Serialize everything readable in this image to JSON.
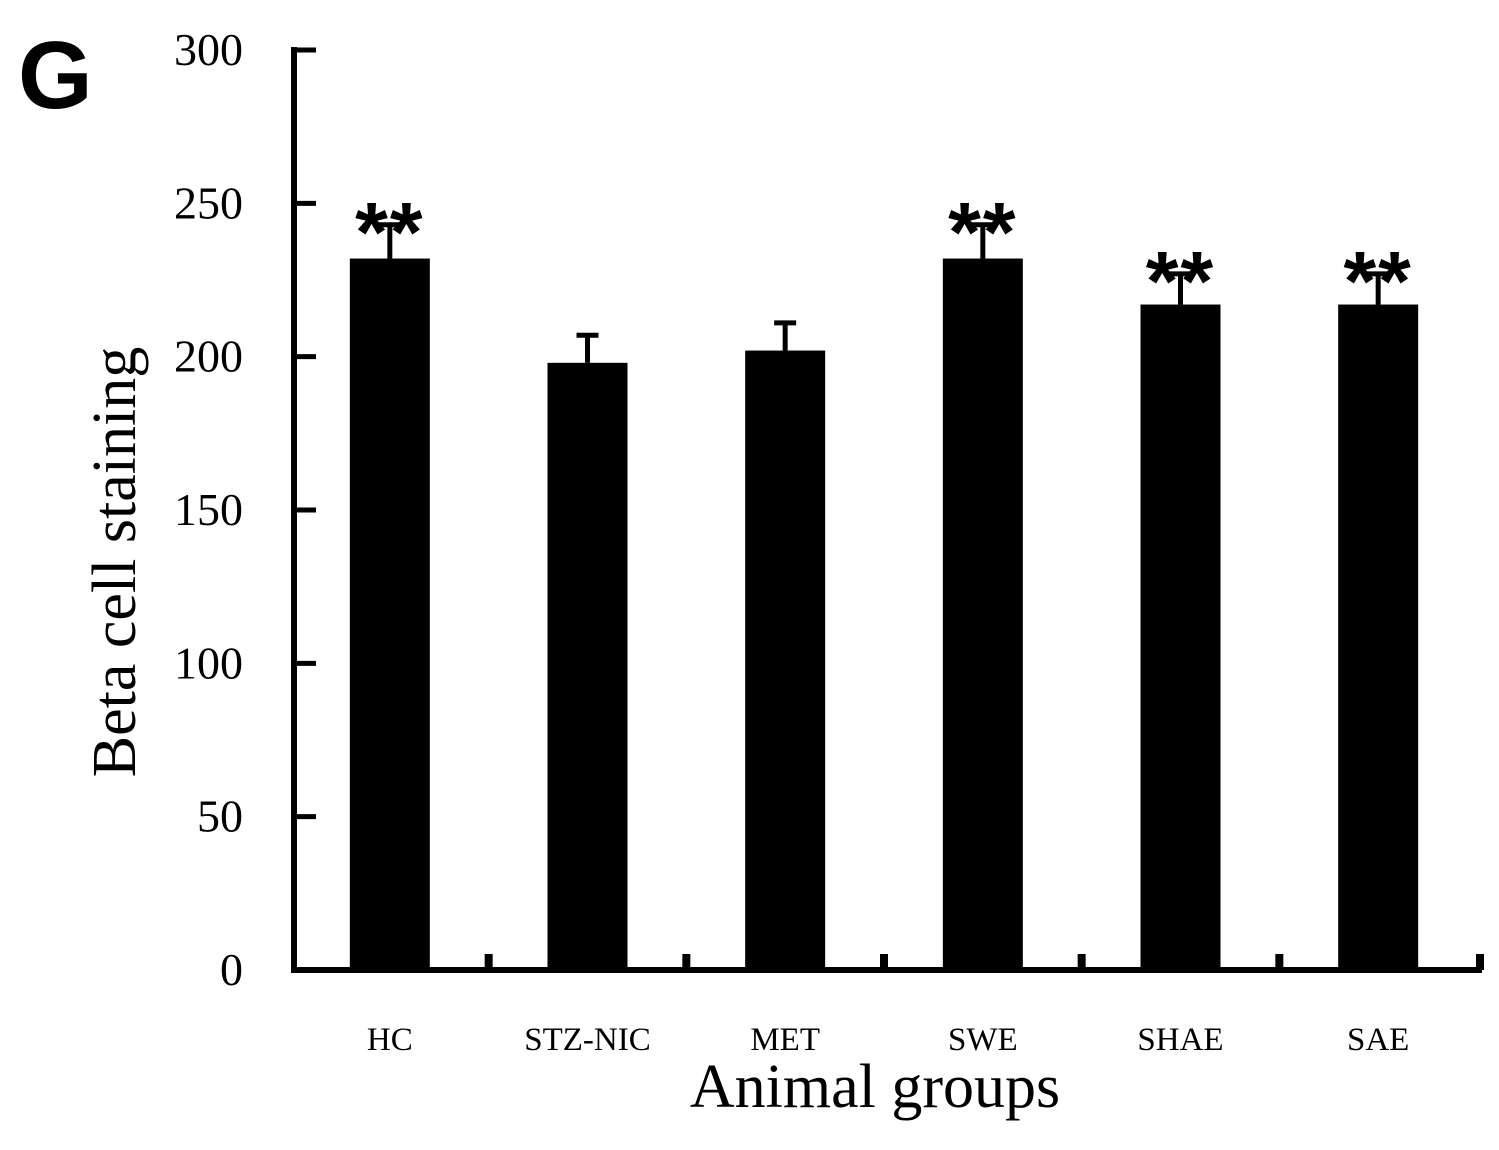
{
  "panel_label": "G",
  "chart_data": {
    "type": "bar",
    "title": "",
    "xlabel": "Animal groups",
    "ylabel": "Beta cell staining",
    "ylim": [
      0,
      300
    ],
    "yticks": [
      0,
      50,
      100,
      150,
      200,
      250,
      300
    ],
    "categories": [
      "HC",
      "STZ-NIC",
      "MET",
      "SWE",
      "SHAE",
      "SAE"
    ],
    "values": [
      232,
      198,
      202,
      232,
      217,
      217
    ],
    "errors": [
      11,
      9,
      9,
      11,
      10,
      10
    ],
    "significance": [
      "**",
      "",
      "",
      "**",
      "**",
      "**"
    ],
    "bar_color": "#000000",
    "grid": false,
    "legend": "none"
  }
}
